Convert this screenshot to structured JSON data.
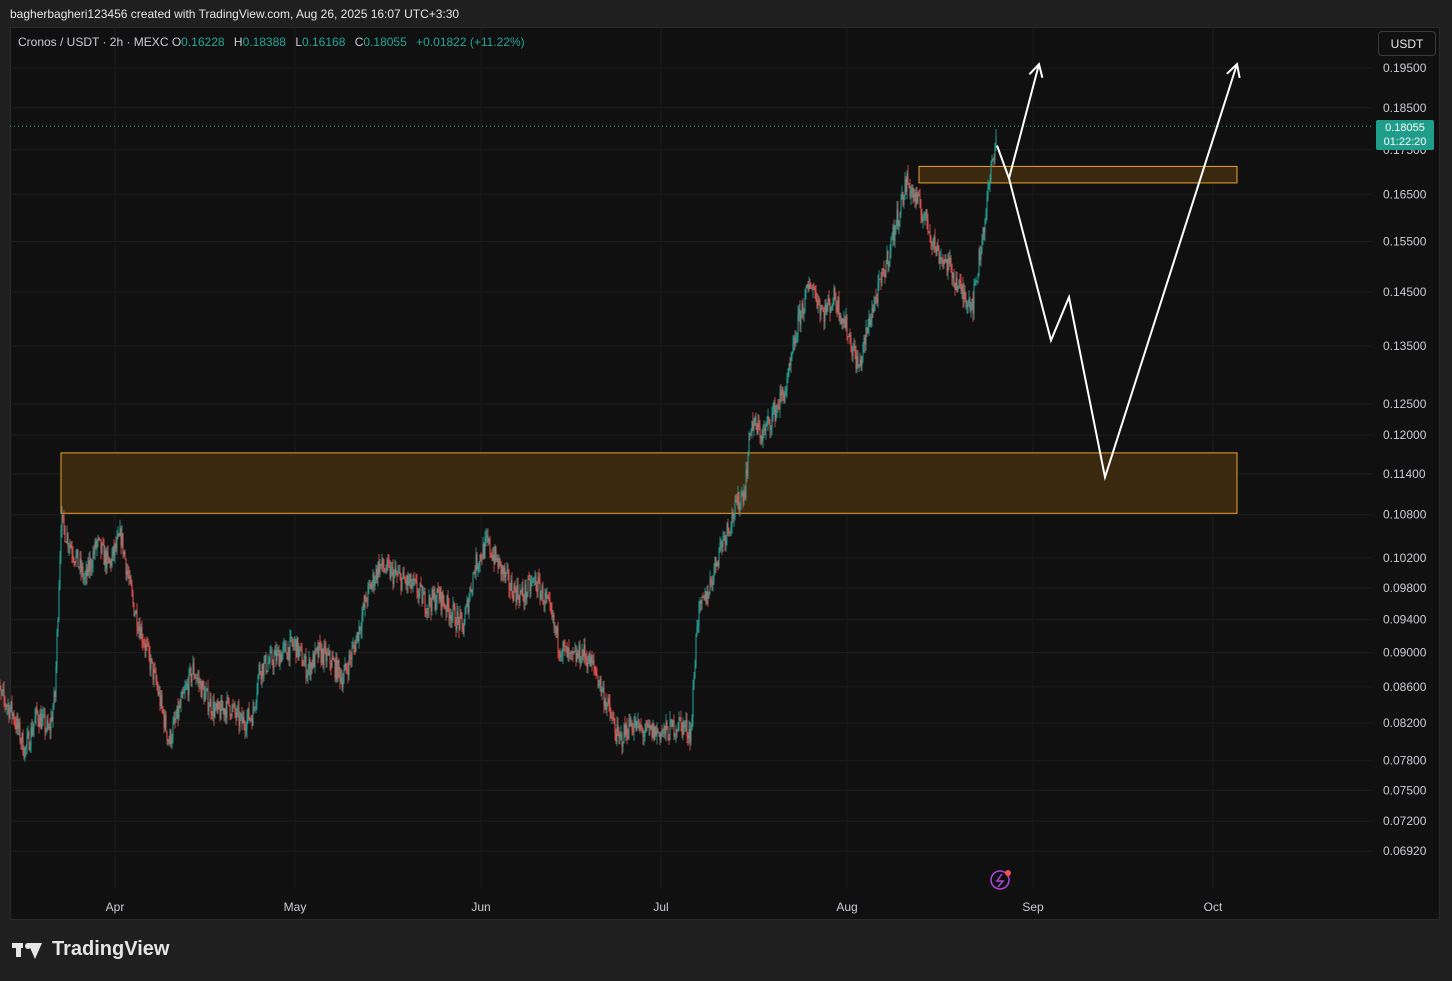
{
  "header": {
    "attribution": "bagherbagheri123456 created with TradingView.com, Aug 26, 2025 16:07 UTC+3:30"
  },
  "legend": {
    "symbol": "Cronos / USDT · 2h · MEXC",
    "open_label": "O",
    "open": "0.16228",
    "high_label": "H",
    "high": "0.18388",
    "low_label": "L",
    "low": "0.16168",
    "close_label": "C",
    "close": "0.18055",
    "change": "+0.01822 (+11.22%)"
  },
  "toolbar": {
    "currency_label": "USDT"
  },
  "price_badge": {
    "price": "0.18055",
    "countdown": "01:22:20"
  },
  "footer": {
    "logo_text": "TradingView"
  },
  "colors": {
    "background": "#101010",
    "up": "#26a69a",
    "down": "#ef5350",
    "zone_fill": "#3d2a10",
    "zone_border": "#f0a030",
    "projection": "#ffffff"
  },
  "icons": {
    "flash": "lightning-icon"
  },
  "chart_data": {
    "type": "candlestick",
    "title": "",
    "xlabel": "",
    "ylabel": "",
    "y_scale": "log",
    "ylim": [
      0.0675,
      0.203
    ],
    "grid": true,
    "y_ticks": [
      "0.19500",
      "0.18500",
      "0.17500",
      "0.16500",
      "0.15500",
      "0.14500",
      "0.13500",
      "0.12500",
      "0.12000",
      "0.11400",
      "0.10800",
      "0.10200",
      "0.09800",
      "0.09400",
      "0.09000",
      "0.08600",
      "0.08200",
      "0.07800",
      "0.07500",
      "0.07200",
      "0.06920"
    ],
    "x_ticks": [
      {
        "label": "Apr",
        "date": "2025-04-01"
      },
      {
        "label": "May",
        "date": "2025-05-01"
      },
      {
        "label": "Jun",
        "date": "2025-06-01"
      },
      {
        "label": "Jul",
        "date": "2025-07-01"
      },
      {
        "label": "Aug",
        "date": "2025-08-01"
      },
      {
        "label": "Sep",
        "date": "2025-09-01"
      },
      {
        "label": "Oct",
        "date": "2025-10-01"
      }
    ],
    "price_path": [
      [
        "2025-03-12",
        0.086
      ],
      [
        "2025-03-15",
        0.083
      ],
      [
        "2025-03-17",
        0.079
      ],
      [
        "2025-03-19",
        0.083
      ],
      [
        "2025-03-21",
        0.081
      ],
      [
        "2025-03-22",
        0.085
      ],
      [
        "2025-03-23",
        0.107
      ],
      [
        "2025-03-25",
        0.103
      ],
      [
        "2025-03-27",
        0.099
      ],
      [
        "2025-03-29",
        0.104
      ],
      [
        "2025-03-31",
        0.101
      ],
      [
        "2025-04-02",
        0.105
      ],
      [
        "2025-04-04",
        0.096
      ],
      [
        "2025-04-06",
        0.091
      ],
      [
        "2025-04-08",
        0.086
      ],
      [
        "2025-04-10",
        0.08
      ],
      [
        "2025-04-12",
        0.084
      ],
      [
        "2025-04-14",
        0.088
      ],
      [
        "2025-04-16",
        0.085
      ],
      [
        "2025-04-18",
        0.083
      ],
      [
        "2025-04-20",
        0.084
      ],
      [
        "2025-04-22",
        0.082
      ],
      [
        "2025-04-24",
        0.083
      ],
      [
        "2025-04-25",
        0.088
      ],
      [
        "2025-04-27",
        0.089
      ],
      [
        "2025-04-29",
        0.09
      ],
      [
        "2025-05-01",
        0.091
      ],
      [
        "2025-05-03",
        0.088
      ],
      [
        "2025-05-05",
        0.09
      ],
      [
        "2025-05-07",
        0.089
      ],
      [
        "2025-05-09",
        0.087
      ],
      [
        "2025-05-11",
        0.091
      ],
      [
        "2025-05-13",
        0.097
      ],
      [
        "2025-05-15",
        0.101
      ],
      [
        "2025-05-17",
        0.1
      ],
      [
        "2025-05-19",
        0.099
      ],
      [
        "2025-05-21",
        0.098
      ],
      [
        "2025-05-23",
        0.096
      ],
      [
        "2025-05-25",
        0.097
      ],
      [
        "2025-05-27",
        0.095
      ],
      [
        "2025-05-29",
        0.093
      ],
      [
        "2025-05-31",
        0.101
      ],
      [
        "2025-06-02",
        0.104
      ],
      [
        "2025-06-04",
        0.101
      ],
      [
        "2025-06-06",
        0.098
      ],
      [
        "2025-06-08",
        0.097
      ],
      [
        "2025-06-10",
        0.099
      ],
      [
        "2025-06-12",
        0.096
      ],
      [
        "2025-06-14",
        0.091
      ],
      [
        "2025-06-16",
        0.089
      ],
      [
        "2025-06-18",
        0.09
      ],
      [
        "2025-06-20",
        0.088
      ],
      [
        "2025-06-22",
        0.084
      ],
      [
        "2025-06-24",
        0.08
      ],
      [
        "2025-06-26",
        0.082
      ],
      [
        "2025-06-28",
        0.081
      ],
      [
        "2025-06-30",
        0.081
      ],
      [
        "2025-07-02",
        0.081
      ],
      [
        "2025-07-04",
        0.082
      ],
      [
        "2025-07-06",
        0.081
      ],
      [
        "2025-07-07",
        0.094
      ],
      [
        "2025-07-09",
        0.098
      ],
      [
        "2025-07-11",
        0.104
      ],
      [
        "2025-07-13",
        0.108
      ],
      [
        "2025-07-15",
        0.112
      ],
      [
        "2025-07-16",
        0.122
      ],
      [
        "2025-07-18",
        0.12
      ],
      [
        "2025-07-20",
        0.124
      ],
      [
        "2025-07-22",
        0.128
      ],
      [
        "2025-07-24",
        0.14
      ],
      [
        "2025-07-26",
        0.147
      ],
      [
        "2025-07-28",
        0.141
      ],
      [
        "2025-07-30",
        0.144
      ],
      [
        "2025-08-01",
        0.138
      ],
      [
        "2025-08-03",
        0.131
      ],
      [
        "2025-08-05",
        0.141
      ],
      [
        "2025-08-07",
        0.148
      ],
      [
        "2025-08-09",
        0.158
      ],
      [
        "2025-08-11",
        0.168
      ],
      [
        "2025-08-12",
        0.165
      ],
      [
        "2025-08-14",
        0.16
      ],
      [
        "2025-08-16",
        0.153
      ],
      [
        "2025-08-18",
        0.15
      ],
      [
        "2025-08-20",
        0.145
      ],
      [
        "2025-08-22",
        0.143
      ],
      [
        "2025-08-24",
        0.16
      ],
      [
        "2025-08-26",
        0.18055
      ]
    ],
    "zones": [
      {
        "from": "2025-03-23",
        "to": "2025-10-05",
        "low": 0.1082,
        "high": 0.1172
      },
      {
        "from": "2025-08-13",
        "to": "2025-10-05",
        "low": 0.1675,
        "high": 0.1712
      }
    ],
    "projections": [
      {
        "points": [
          [
            "2025-08-26",
            0.176
          ],
          [
            "2025-08-28",
            0.1685
          ],
          [
            "2025-09-02",
            0.196
          ]
        ],
        "arrow": true
      },
      {
        "points": [
          [
            "2025-08-28",
            0.1685
          ],
          [
            "2025-09-04",
            0.136
          ],
          [
            "2025-09-07",
            0.144
          ],
          [
            "2025-09-13",
            0.1135
          ],
          [
            "2025-10-05",
            0.196
          ]
        ],
        "arrow": true
      }
    ],
    "last_price": 0.18055
  }
}
